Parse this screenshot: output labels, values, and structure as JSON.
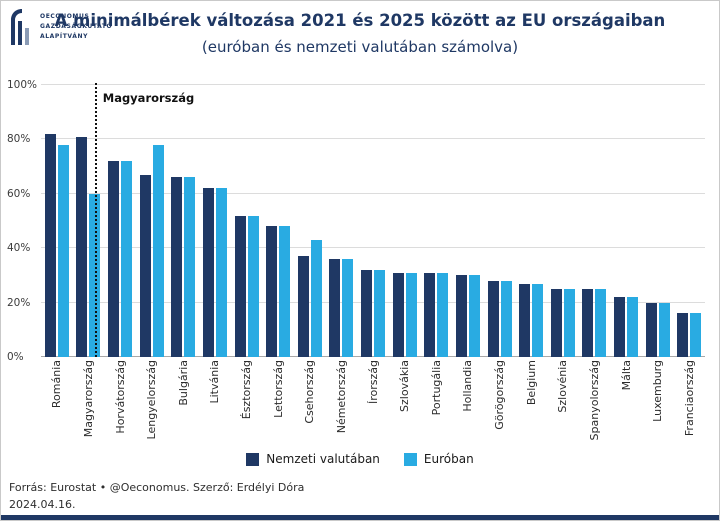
{
  "logo": {
    "lines": [
      "OECONOMUS",
      "GAZDASÁGKUTATÓ",
      "ALAPÍTVÁNY"
    ]
  },
  "title": "A minimálbérek változása 2021 és 2025 között az EU országaiban",
  "subtitle": "(euróban és nemzeti valutában számolva)",
  "footer": {
    "line1": "Forrás: Eurostat • @Oeconomus. Szerző: Erdélyi Dóra",
    "line2": "2024.04.16."
  },
  "colors": {
    "navy": "#1f3864",
    "cyan": "#29abe2"
  },
  "chart_data": {
    "type": "bar",
    "title": "A minimálbérek változása 2021 és 2025 között az EU országaiban",
    "subtitle": "(euróban és nemzeti valutában számolva)",
    "categories": [
      "Románia",
      "Magyarország",
      "Horvátország",
      "Lengyelország",
      "Bulgária",
      "Litvánia",
      "Észtország",
      "Lettország",
      "Csehország",
      "Németország",
      "Írország",
      "Szlovákia",
      "Portugália",
      "Hollandia",
      "Görögország",
      "Belgium",
      "Szlovénia",
      "Spanyolország",
      "Málta",
      "Luxemburg",
      "Franciaország"
    ],
    "series": [
      {
        "name": "Nemzeti valutában",
        "color": "#1f3864",
        "values": [
          82,
          81,
          72,
          67,
          66,
          62,
          52,
          48,
          37,
          36,
          32,
          31,
          31,
          30,
          28,
          27,
          25,
          25,
          22,
          20,
          16
        ]
      },
      {
        "name": "Euróban",
        "color": "#29abe2",
        "values": [
          78,
          60,
          72,
          78,
          66,
          62,
          52,
          48,
          43,
          36,
          32,
          31,
          31,
          30,
          28,
          27,
          25,
          25,
          22,
          20,
          16
        ]
      }
    ],
    "ylim": [
      0,
      100
    ],
    "yticks": [
      "0%",
      "20%",
      "40%",
      "60%",
      "80%",
      "100%"
    ],
    "ylabel": "",
    "xlabel": "",
    "grid": true,
    "legend_position": "bottom",
    "annotation": {
      "label": "Magyarország",
      "category": "Magyarország"
    }
  }
}
